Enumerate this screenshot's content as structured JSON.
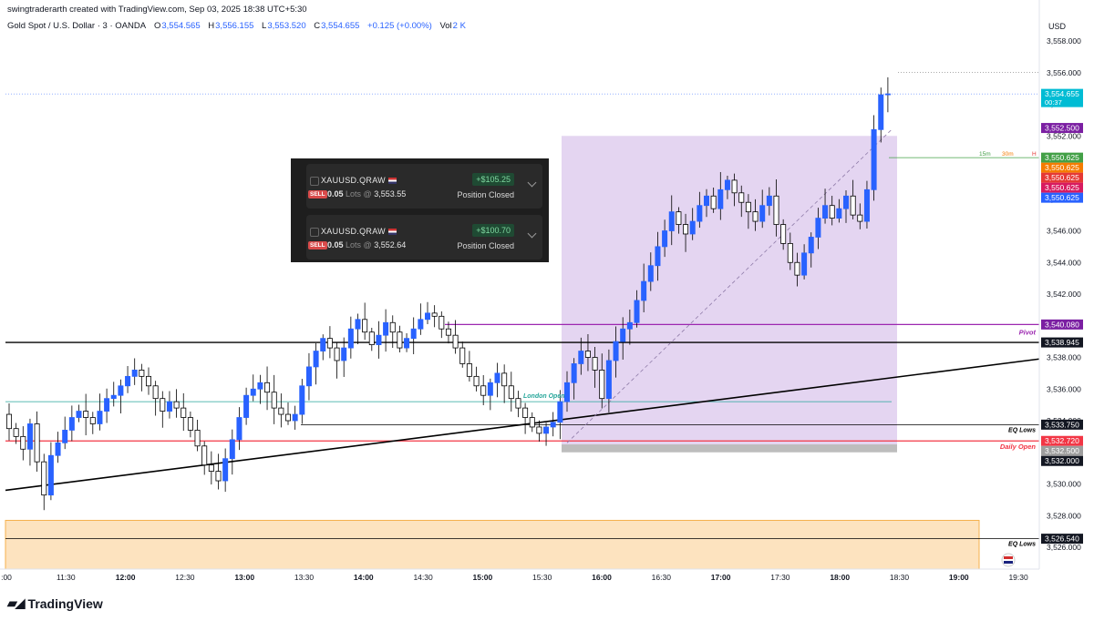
{
  "header": {
    "credit": "swingtraderarth created with TradingView.com, Sep 03, 2025 18:38 UTC+5:30",
    "symbol": "Gold Spot / U.S. Dollar · 3 · OANDA",
    "open_label": "O",
    "open": "3,554.565",
    "high_label": "H",
    "high": "3,556.155",
    "low_label": "L",
    "low": "3,553.520",
    "close_label": "C",
    "close": "3,554.655",
    "change": "+0.125 (+0.00%)",
    "vol_label": "Vol",
    "vol": "2 K",
    "currency": "USD"
  },
  "positions": [
    {
      "symbol": "XAUUSD.QRAW",
      "pnl": "+$105.25",
      "side": "SELL",
      "lots": "0.05",
      "lots_label": "Lots @",
      "price": "3,553.55",
      "status": "Position Closed"
    },
    {
      "symbol": "XAUUSD.QRAW",
      "pnl": "+$100.70",
      "side": "SELL",
      "lots": "0.05",
      "lots_label": "Lots @",
      "price": "3,552.64",
      "status": "Position Closed"
    }
  ],
  "branding": {
    "logo_text": "TradingView"
  },
  "colors": {
    "up": "#2962ff",
    "down": "#ffffff",
    "pivot": "#9c27b0",
    "daily_open": "#f23645",
    "box": "#e1d0ef",
    "demand": "#fde3bf",
    "last_price": "#00bcd4"
  },
  "chart_data": {
    "type": "candlestick",
    "ylim": [
      3524.5,
      3559.5
    ],
    "y_ticks": [
      3526,
      3528,
      3530,
      3532,
      3534,
      3536,
      3538,
      3540,
      3542,
      3544,
      3546,
      3548,
      3550,
      3552,
      3554,
      3556,
      3558
    ],
    "y_tick_labels": [
      "3,526.000",
      "3,528.000",
      "3,530.000",
      "3,532.000",
      "3,534.000",
      "3,536.000",
      "3,538.000",
      "3,540.000",
      "3,542.000",
      "3,544.000",
      "3,546.000",
      "3,548.000",
      "3,550.000",
      "3,552.000",
      "3,554.000",
      "3,556.000",
      "3,558.000"
    ],
    "x_labels": [
      ":00",
      "11:30",
      "12:00",
      "12:30",
      "13:00",
      "13:30",
      "14:00",
      "14:30",
      "15:00",
      "15:30",
      "16:00",
      "16:30",
      "17:00",
      "17:30",
      "18:00",
      "18:30",
      "19:00",
      "19:30"
    ],
    "candles_close": [
      3533.5,
      3533.0,
      3532.2,
      3533.8,
      3531.4,
      3529.3,
      3531.8,
      3532.6,
      3533.4,
      3534.2,
      3534.6,
      3534.2,
      3533.8,
      3534.6,
      3535.4,
      3535.6,
      3536.2,
      3536.8,
      3537.2,
      3536.8,
      3536.2,
      3535.4,
      3534.6,
      3535.2,
      3534.8,
      3534.2,
      3533.4,
      3532.4,
      3531.2,
      3530.8,
      3530.2,
      3531.6,
      3532.8,
      3534.2,
      3535.6,
      3536.0,
      3536.4,
      3535.8,
      3534.8,
      3534.4,
      3534.0,
      3534.4,
      3536.2,
      3537.4,
      3538.4,
      3539.2,
      3538.6,
      3537.8,
      3538.6,
      3539.8,
      3540.4,
      3539.6,
      3538.8,
      3539.4,
      3540.2,
      3539.6,
      3538.6,
      3539.2,
      3539.8,
      3540.4,
      3540.8,
      3540.6,
      3539.8,
      3539.4,
      3538.6,
      3537.6,
      3536.8,
      3536.2,
      3535.6,
      3536.4,
      3537.0,
      3536.2,
      3535.4,
      3534.8,
      3534.2,
      3533.6,
      3533.2,
      3533.6,
      3533.9,
      3535.2,
      3536.4,
      3537.6,
      3538.4,
      3538.0,
      3537.2,
      3535.4,
      3537.8,
      3539.0,
      3539.8,
      3540.2,
      3541.6,
      3542.8,
      3543.8,
      3545.0,
      3546.0,
      3547.2,
      3546.4,
      3545.8,
      3546.6,
      3547.6,
      3548.2,
      3547.4,
      3548.6,
      3549.2,
      3548.4,
      3547.8,
      3547.2,
      3546.6,
      3547.6,
      3548.2,
      3546.4,
      3545.2,
      3544.0,
      3543.2,
      3544.6,
      3545.6,
      3546.8,
      3547.6,
      3546.8,
      3547.4,
      3548.2,
      3547.0,
      3546.6,
      3548.6,
      3552.4,
      3554.6,
      3554.655
    ],
    "lines": [
      {
        "name": "Pivot",
        "value": 3540.08
      },
      {
        "name": "Daily Open",
        "value": 3532.72
      },
      {
        "name": "EQ Lows",
        "value": 3533.75
      },
      {
        "name": "EQ Lows",
        "value": 3526.54
      },
      {
        "name": "",
        "value": 3538.945
      },
      {
        "name": "",
        "value": 3552.5
      }
    ],
    "line_labels": {
      "pivot": "Pivot",
      "daily_open": "Daily Open",
      "eq_lows_1": "EQ Lows",
      "eq_lows_2": "EQ Lows",
      "session": "London Open"
    },
    "price_tags": [
      {
        "label": "3,554.655",
        "sub": "00:37",
        "color": "#00bcd4"
      },
      {
        "label": "3,552.500",
        "color": "#7b1fa2"
      },
      {
        "label": "3,550.625",
        "color": "#43a047"
      },
      {
        "label": "3,550.625",
        "color": "#f57c00"
      },
      {
        "label": "3,550.625",
        "color": "#e53935"
      },
      {
        "label": "3,550.625",
        "color": "#d81b60"
      },
      {
        "label": "3,550.625",
        "color": "#2962ff"
      },
      {
        "label": "3,540.080",
        "color": "#7b1fa2"
      },
      {
        "label": "3,538.945",
        "color": "#131722"
      },
      {
        "label": "3,533.750",
        "color": "#131722"
      },
      {
        "label": "3,532.720",
        "color": "#f23645"
      },
      {
        "label": "3,532.500",
        "color": "#9e9e9e"
      },
      {
        "label": "3,532.000",
        "color": "#131722"
      },
      {
        "label": "3,526.540",
        "color": "#131722"
      }
    ],
    "tf_labels": [
      "15m",
      "30m",
      "H"
    ],
    "grid": false
  }
}
